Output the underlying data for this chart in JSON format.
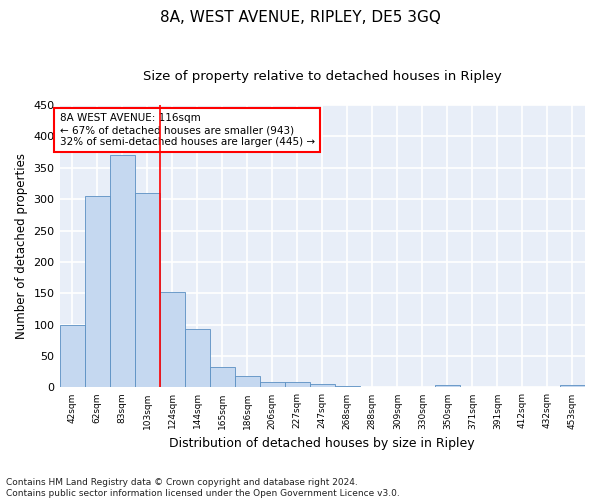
{
  "title": "8A, WEST AVENUE, RIPLEY, DE5 3GQ",
  "subtitle": "Size of property relative to detached houses in Ripley",
  "xlabel": "Distribution of detached houses by size in Ripley",
  "ylabel": "Number of detached properties",
  "categories": [
    "42sqm",
    "62sqm",
    "83sqm",
    "103sqm",
    "124sqm",
    "144sqm",
    "165sqm",
    "186sqm",
    "206sqm",
    "227sqm",
    "247sqm",
    "268sqm",
    "288sqm",
    "309sqm",
    "330sqm",
    "350sqm",
    "371sqm",
    "391sqm",
    "412sqm",
    "432sqm",
    "453sqm"
  ],
  "values": [
    100,
    305,
    370,
    310,
    152,
    93,
    32,
    18,
    8,
    9,
    6,
    3,
    1,
    1,
    1,
    4,
    0,
    0,
    0,
    0,
    4
  ],
  "bar_color": "#c5d8f0",
  "bar_edge_color": "#5a8fc2",
  "vline_x": 3.5,
  "vline_color": "red",
  "annotation_text": "8A WEST AVENUE: 116sqm\n← 67% of detached houses are smaller (943)\n32% of semi-detached houses are larger (445) →",
  "annotation_box_color": "white",
  "annotation_box_edge": "red",
  "ylim": [
    0,
    450
  ],
  "yticks": [
    0,
    50,
    100,
    150,
    200,
    250,
    300,
    350,
    400,
    450
  ],
  "footer": "Contains HM Land Registry data © Crown copyright and database right 2024.\nContains public sector information licensed under the Open Government Licence v3.0.",
  "bg_color": "#e8eef8",
  "grid_color": "white",
  "title_fontsize": 11,
  "subtitle_fontsize": 9.5,
  "xlabel_fontsize": 9,
  "ylabel_fontsize": 8.5,
  "footer_fontsize": 6.5,
  "annotation_fontsize": 7.5
}
